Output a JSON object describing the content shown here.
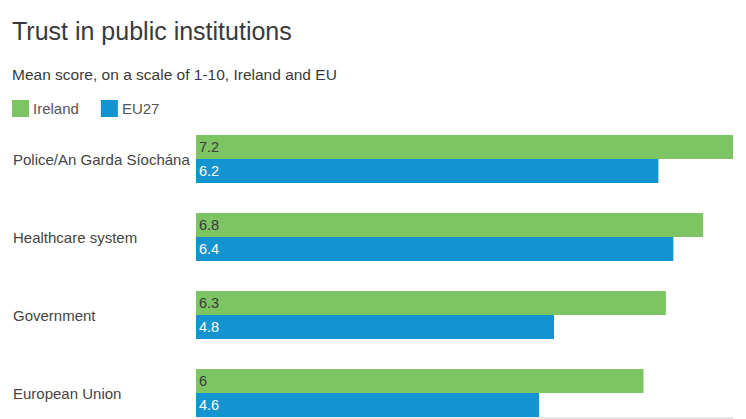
{
  "chart_data": {
    "type": "bar",
    "orientation": "horizontal",
    "title": "Trust in public institutions",
    "subtitle": "Mean score, on a scale of 1-10, Ireland and EU",
    "categories": [
      "Police/An Garda Síochána",
      "Healthcare system",
      "Government",
      "European Union"
    ],
    "series": [
      {
        "name": "Ireland",
        "color": "#7dc462",
        "values": [
          7.2,
          6.8,
          6.3,
          6
        ]
      },
      {
        "name": "EU27",
        "color": "#1394d0",
        "values": [
          6.2,
          6.4,
          4.8,
          4.6
        ]
      }
    ],
    "xlim": [
      0,
      7.2
    ],
    "legend": "top-left",
    "data_labels": true,
    "tick_labels": false
  }
}
